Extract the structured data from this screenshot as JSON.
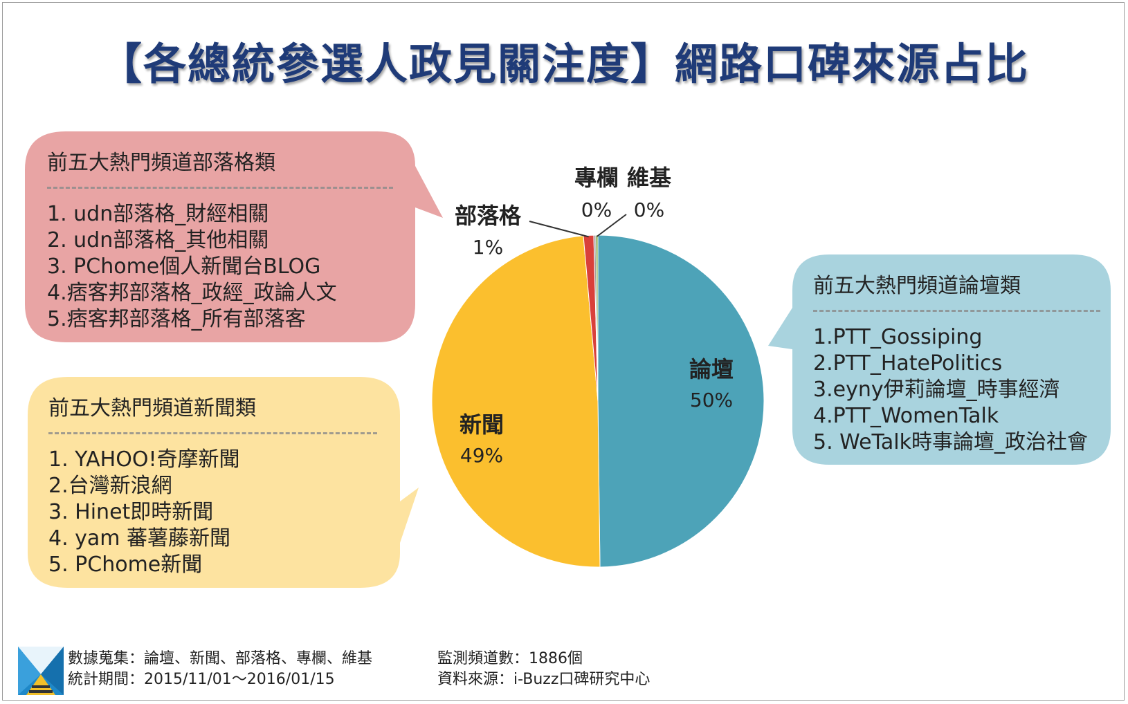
{
  "title": "【各總統參選人政見關注度】網路口碑來源占比",
  "colors": {
    "forum": "#4da3b8",
    "news": "#fbbf2e",
    "blog": "#d9403a",
    "column": "#a0a0a0",
    "wiki": "#7aa23a",
    "bubble_blog": "#e8a4a4",
    "bubble_news": "#fde3a0",
    "bubble_forum": "#a9d3de",
    "title": "#1f3b78"
  },
  "bubbles": {
    "blog": {
      "heading": "前五大熱門頻道部落格類",
      "items": [
        "1. udn部落格_財經相關",
        "2. udn部落格_其他相關",
        "3. PChome個人新聞台BLOG",
        "4.痞客邦部落格_政經_政論人文",
        "5.痞客邦部落格_所有部落客"
      ]
    },
    "news": {
      "heading": "前五大熱門頻道新聞類",
      "items": [
        "1. YAHOO!奇摩新聞",
        "2.台灣新浪網",
        "3. Hinet即時新聞",
        "4. yam 蕃薯藤新聞",
        "5. PChome新聞"
      ]
    },
    "forum": {
      "heading": "前五大熱門頻道論壇類",
      "items": [
        "1.PTT_Gossiping",
        "2.PTT_HatePolitics",
        "3.eyny伊莉論壇_時事經濟",
        "4.PTT_WomenTalk",
        "5. WeTalk時事論壇_政治社會"
      ]
    }
  },
  "chart_data": {
    "type": "pie",
    "title": "【各總統參選人政見關注度】網路口碑來源占比",
    "slices": [
      {
        "label": "論壇",
        "value": 50,
        "display": "50%",
        "color": "#4da3b8"
      },
      {
        "label": "新聞",
        "value": 49,
        "display": "49%",
        "color": "#fbbf2e"
      },
      {
        "label": "部落格",
        "value": 1,
        "display": "1%",
        "color": "#d9403a"
      },
      {
        "label": "專欄",
        "value": 0.2,
        "display": "0%",
        "color": "#a0a0a0"
      },
      {
        "label": "維基",
        "value": 0.2,
        "display": "0%",
        "color": "#7aa23a"
      }
    ]
  },
  "footer": {
    "collection": "數據蒐集：論壇、新聞、部落格、專欄、維基",
    "period": "統計期間：2015/11/01～2016/01/15",
    "channels": "監測頻道數：1886個",
    "source": "資料來源：i-Buzz口碑研究中心"
  }
}
